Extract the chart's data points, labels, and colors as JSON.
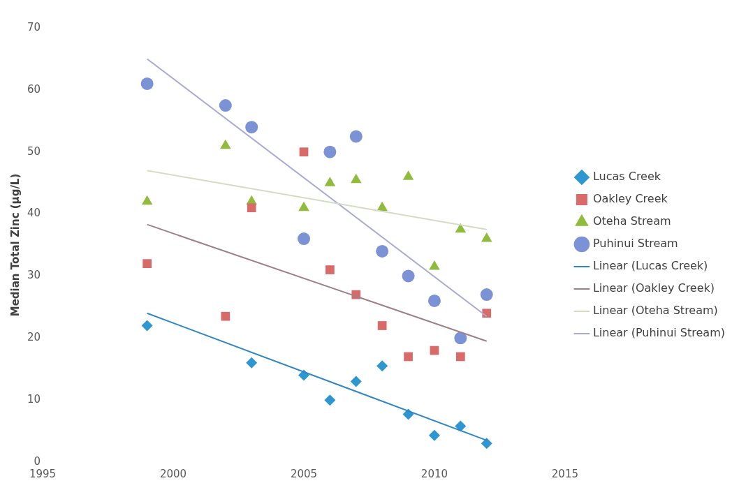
{
  "chart_data": {
    "type": "scatter",
    "ylabel": "Median Total Zinc (µg/L)",
    "xlim": [
      1995,
      2015
    ],
    "xticks": [
      1995,
      2000,
      2005,
      2010,
      2015
    ],
    "ylim": [
      0,
      70
    ],
    "yticks": [
      0,
      10,
      20,
      30,
      40,
      50,
      60,
      70
    ],
    "grid": false,
    "legend": "right",
    "series": [
      {
        "name": "Lucas Creek",
        "color": "#2e96d0",
        "marker": "diamond",
        "x": [
          1999,
          2003,
          2005,
          2006,
          2007,
          2008,
          2009,
          2010,
          2011,
          2012
        ],
        "values": [
          22,
          16,
          14,
          10,
          13,
          15.5,
          7.7,
          4.3,
          5.8,
          3
        ]
      },
      {
        "name": "Oakley Creek",
        "color": "#d96a6a",
        "marker": "square",
        "x": [
          1999,
          2002,
          2003,
          2005,
          2006,
          2007,
          2008,
          2009,
          2010,
          2011,
          2012
        ],
        "values": [
          32,
          23.5,
          41,
          50,
          31,
          27,
          22,
          17,
          18,
          17,
          24
        ]
      },
      {
        "name": "Oteha Stream",
        "color": "#8fbc3c",
        "marker": "triangle",
        "x": [
          1999,
          2002,
          2003,
          2005,
          2006,
          2007,
          2008,
          2009,
          2010,
          2011,
          2012
        ],
        "values": [
          42,
          51,
          42,
          41,
          45,
          45.5,
          41,
          46,
          31.5,
          37.5,
          36
        ]
      },
      {
        "name": "Puhinui Stream",
        "color": "#7b93d6",
        "marker": "circle",
        "x": [
          1999,
          2002,
          2003,
          2005,
          2006,
          2007,
          2008,
          2009,
          2010,
          2011,
          2012
        ],
        "values": [
          61,
          57.5,
          54,
          36,
          50,
          52.5,
          34,
          30,
          26,
          20,
          27
        ]
      },
      {
        "name": "Linear (Lucas Creek)",
        "type": "line",
        "color": "#2e86c8",
        "marker": "none",
        "x": [
          1999,
          2012
        ],
        "values": [
          24,
          3.5
        ]
      },
      {
        "name": "Linear (Oakley Creek)",
        "type": "line",
        "color": "#a08088",
        "marker": "none",
        "x": [
          1999,
          2012
        ],
        "values": [
          38.3,
          19.5
        ]
      },
      {
        "name": "Linear (Oteha Stream)",
        "type": "line",
        "color": "#d4dcc4",
        "marker": "none",
        "x": [
          1999,
          2012
        ],
        "values": [
          47,
          37.5
        ]
      },
      {
        "name": "Linear (Puhinui Stream)",
        "type": "line",
        "color": "#a9a9d8",
        "marker": "none",
        "x": [
          1999,
          2012
        ],
        "values": [
          65,
          23.5
        ]
      }
    ]
  }
}
